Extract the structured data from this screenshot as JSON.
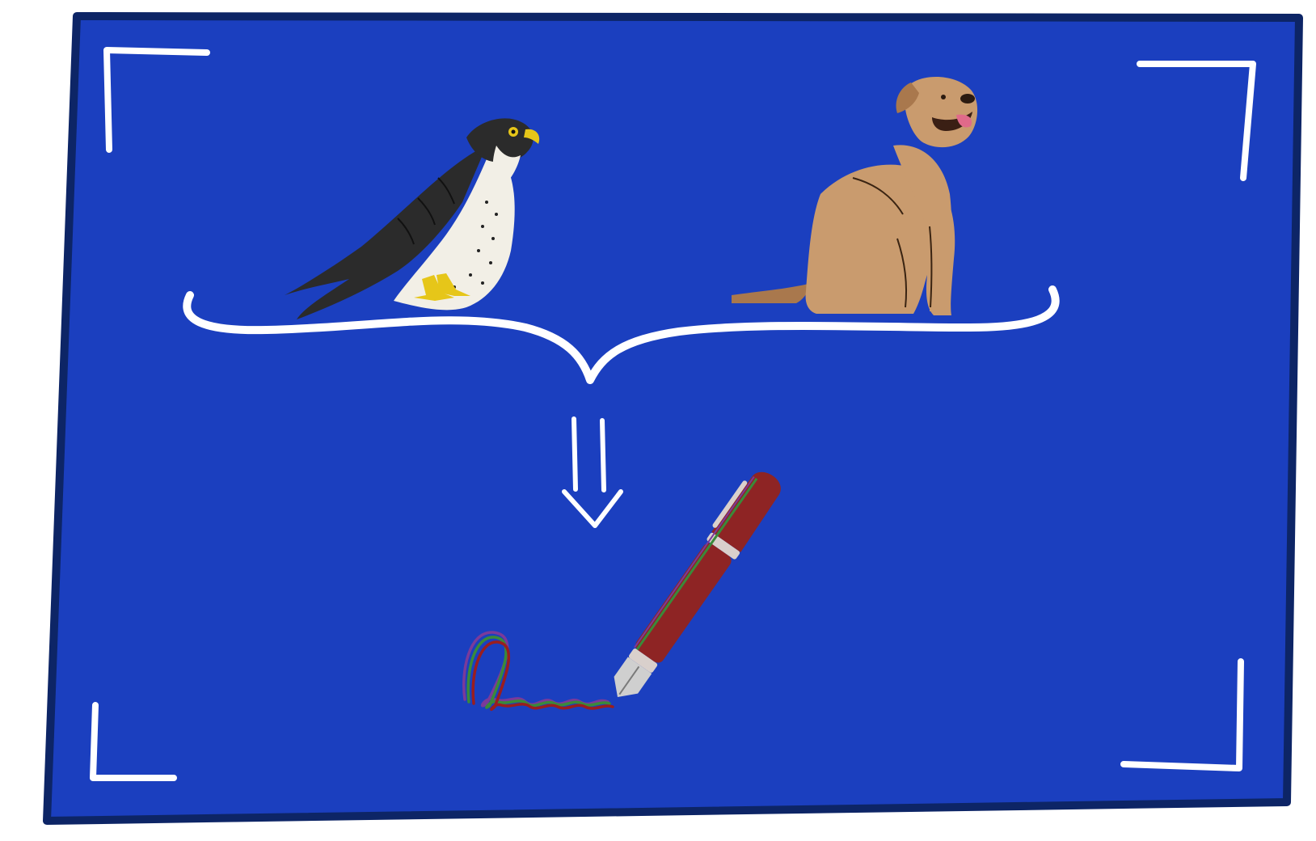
{
  "colors": {
    "board_fill": "#1b3fbf",
    "board_border": "#0d2566",
    "chalk": "#ffffff",
    "falcon_dark": "#2b2b2b",
    "falcon_light": "#f2efe6",
    "falcon_beak": "#e6c619",
    "dog_body": "#c99b6e",
    "dog_shade": "#a9784d",
    "dog_tongue": "#e06a8a",
    "pen_body": "#8e2424",
    "pen_band": "#d9d0cc",
    "pen_nib": "#cfcfcf",
    "scribble_red": "#9a1e1e",
    "scribble_green": "#3a8a3a",
    "scribble_purple": "#7a3a9a"
  },
  "icons": {
    "left_top_corner": "corner-bracket-icon",
    "right_top_corner": "corner-bracket-icon",
    "left_bottom_corner": "corner-bracket-icon",
    "right_bottom_corner": "corner-bracket-icon",
    "falcon": "falcon-icon",
    "dog": "dog-icon",
    "brace": "curly-brace-icon",
    "arrow": "double-arrow-down-icon",
    "pen": "fountain-pen-icon",
    "scribble": "scribble-icon"
  }
}
